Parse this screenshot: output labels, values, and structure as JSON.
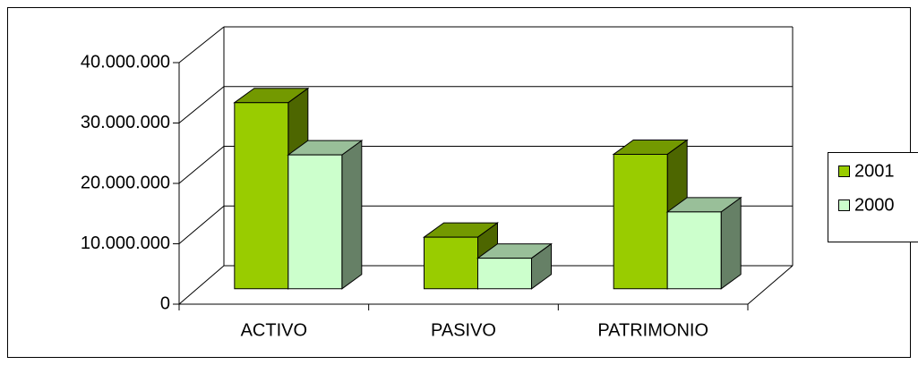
{
  "chart_data": {
    "type": "bar3d",
    "categories": [
      "ACTIVO",
      "PASIVO",
      "PATRIMONIO"
    ],
    "series": [
      {
        "name": "2001",
        "color": "#99cc00",
        "values": [
          31000000,
          8600000,
          22400000
        ]
      },
      {
        "name": "2000",
        "color": "#ccffcc",
        "values": [
          22300000,
          5100000,
          12800000
        ]
      }
    ],
    "ylim": [
      0,
      40000000
    ],
    "yticks": [
      {
        "value": 0,
        "label": "0"
      },
      {
        "value": 10000000,
        "label": "10.000.000"
      },
      {
        "value": 20000000,
        "label": "20.000.000"
      },
      {
        "value": 30000000,
        "label": "30.000.000"
      },
      {
        "value": 40000000,
        "label": "40.000.000"
      }
    ],
    "grid": true,
    "legend": "right"
  }
}
